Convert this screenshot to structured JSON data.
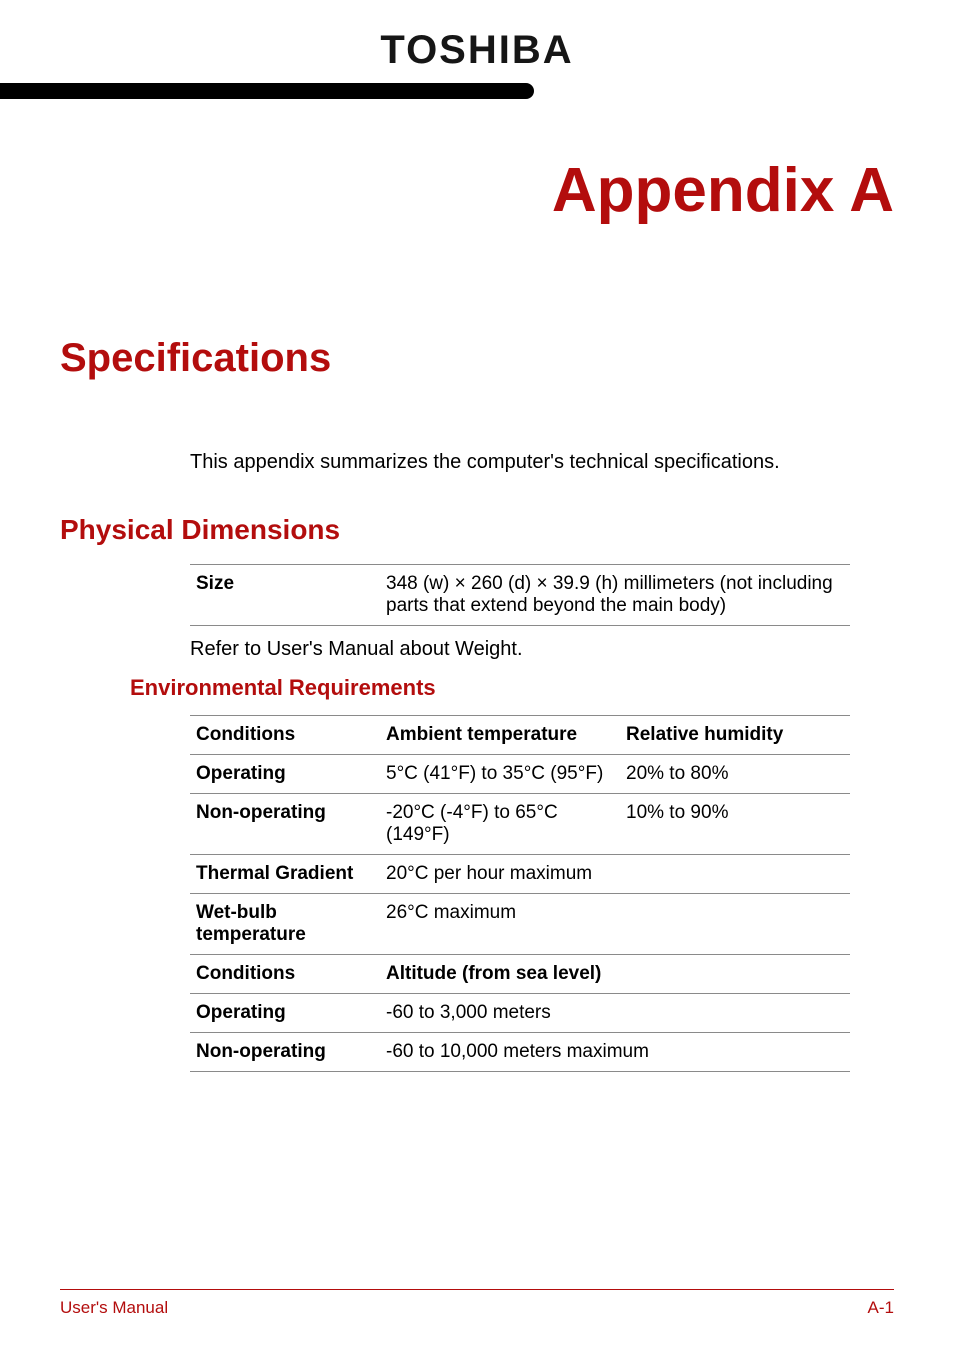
{
  "brand": "TOSHIBA",
  "colors": {
    "accent": "#b30d0d",
    "rule_dark": "#000000",
    "rule_light": "#b9b9b9",
    "text": "#000000",
    "border": "#8a8a8a",
    "background": "#ffffff"
  },
  "typography": {
    "brand_fontsize": 40,
    "appendix_fontsize": 62,
    "h1_fontsize": 40,
    "h2_fontsize": 28,
    "h3_fontsize": 22,
    "body_fontsize": 20,
    "footer_fontsize": 17
  },
  "appendix_title": "Appendix A",
  "h1": "Specifications",
  "intro": "This appendix summarizes the computer's technical specifications.",
  "physical": {
    "heading": "Physical Dimensions",
    "row_label": "Size",
    "row_value": "348 (w) × 260 (d) × 39.9 (h) millimeters (not including parts that extend beyond the main body)",
    "note": "Refer to User's Manual about Weight."
  },
  "env": {
    "heading": "Environmental Requirements",
    "header1": {
      "c1": "Conditions",
      "c2": "Ambient temperature",
      "c3": "Relative humidity"
    },
    "rows1": [
      {
        "c1": "Operating",
        "c2": "5°C (41°F) to 35°C (95°F)",
        "c3": "20% to 80%"
      },
      {
        "c1": "Non-operating",
        "c2": "-20°C (-4°F) to 65°C (149°F)",
        "c3": "10% to 90%"
      },
      {
        "c1": "Thermal Gradient",
        "c2": "20°C per hour maximum",
        "c3": ""
      },
      {
        "c1": "Wet-bulb temperature",
        "c2": "26°C maximum",
        "c3": ""
      }
    ],
    "header2": {
      "c1": "Conditions",
      "c2": "Altitude (from sea level)"
    },
    "rows2": [
      {
        "c1": "Operating",
        "c2": "-60 to 3,000 meters"
      },
      {
        "c1": "Non-operating",
        "c2": "-60 to 10,000 meters maximum"
      }
    ]
  },
  "footer": {
    "left": "User's Manual",
    "right": "A-1"
  }
}
